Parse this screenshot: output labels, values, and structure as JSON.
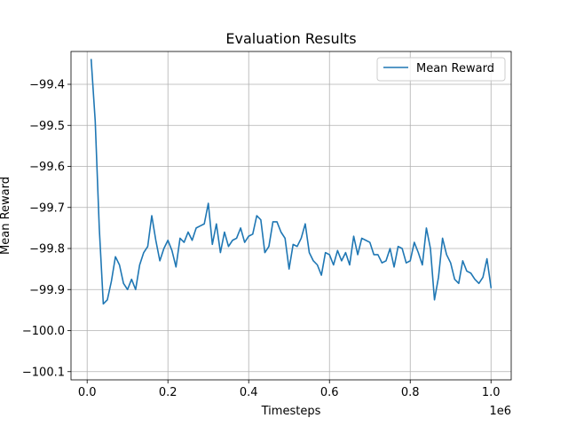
{
  "chart_data": {
    "type": "line",
    "title": "Evaluation Results",
    "xlabel": "Timesteps",
    "ylabel": "Mean Reward",
    "x_offset_text": "1e6",
    "xlim": [
      -0.04,
      1.05
    ],
    "ylim": [
      -100.12,
      -99.32
    ],
    "x_ticks": [
      0.0,
      0.2,
      0.4,
      0.6,
      0.8,
      1.0
    ],
    "x_tick_labels": [
      "0.0",
      "0.2",
      "0.4",
      "0.6",
      "0.8",
      "1.0"
    ],
    "y_ticks": [
      -99.4,
      -99.5,
      -99.6,
      -99.7,
      -99.8,
      -99.9,
      -100.0,
      -100.1
    ],
    "y_tick_labels": [
      "−99.4",
      "−99.5",
      "−99.6",
      "−99.7",
      "−99.8",
      "−99.9",
      "−100.0",
      "−100.1"
    ],
    "grid": true,
    "legend": {
      "position": "top-right"
    },
    "series": [
      {
        "name": "Mean Reward",
        "color": "#1f77b4",
        "x": [
          0.01,
          0.02,
          0.03,
          0.04,
          0.05,
          0.06,
          0.07,
          0.08,
          0.09,
          0.1,
          0.11,
          0.12,
          0.13,
          0.14,
          0.15,
          0.16,
          0.17,
          0.18,
          0.19,
          0.2,
          0.21,
          0.22,
          0.23,
          0.24,
          0.25,
          0.26,
          0.27,
          0.28,
          0.29,
          0.3,
          0.31,
          0.32,
          0.33,
          0.34,
          0.35,
          0.36,
          0.37,
          0.38,
          0.39,
          0.4,
          0.41,
          0.42,
          0.43,
          0.44,
          0.45,
          0.46,
          0.47,
          0.48,
          0.49,
          0.5,
          0.51,
          0.52,
          0.53,
          0.54,
          0.55,
          0.56,
          0.57,
          0.58,
          0.59,
          0.6,
          0.61,
          0.62,
          0.63,
          0.64,
          0.65,
          0.66,
          0.67,
          0.68,
          0.69,
          0.7,
          0.71,
          0.72,
          0.73,
          0.74,
          0.75,
          0.76,
          0.77,
          0.78,
          0.79,
          0.8,
          0.81,
          0.82,
          0.83,
          0.84,
          0.85,
          0.86,
          0.87,
          0.88,
          0.89,
          0.9,
          0.91,
          0.92,
          0.93,
          0.94,
          0.95,
          0.96,
          0.97,
          0.98,
          0.99,
          1.0
        ],
        "values": [
          -99.34,
          -99.49,
          -99.75,
          -99.935,
          -99.925,
          -99.88,
          -99.82,
          -99.84,
          -99.885,
          -99.9,
          -99.875,
          -99.9,
          -99.84,
          -99.81,
          -99.795,
          -99.72,
          -99.78,
          -99.83,
          -99.8,
          -99.78,
          -99.805,
          -99.845,
          -99.775,
          -99.785,
          -99.76,
          -99.78,
          -99.75,
          -99.745,
          -99.74,
          -99.69,
          -99.79,
          -99.74,
          -99.81,
          -99.76,
          -99.795,
          -99.78,
          -99.775,
          -99.75,
          -99.785,
          -99.77,
          -99.765,
          -99.72,
          -99.73,
          -99.81,
          -99.795,
          -99.735,
          -99.735,
          -99.76,
          -99.775,
          -99.85,
          -99.79,
          -99.795,
          -99.775,
          -99.74,
          -99.81,
          -99.83,
          -99.84,
          -99.865,
          -99.81,
          -99.815,
          -99.84,
          -99.805,
          -99.83,
          -99.81,
          -99.84,
          -99.77,
          -99.815,
          -99.775,
          -99.78,
          -99.785,
          -99.815,
          -99.815,
          -99.835,
          -99.83,
          -99.8,
          -99.845,
          -99.795,
          -99.8,
          -99.835,
          -99.83,
          -99.785,
          -99.81,
          -99.84,
          -99.75,
          -99.8,
          -99.925,
          -99.87,
          -99.775,
          -99.815,
          -99.835,
          -99.875,
          -99.885,
          -99.83,
          -99.855,
          -99.86,
          -99.875,
          -99.885,
          -99.87,
          -99.825,
          -99.895
        ]
      }
    ]
  }
}
